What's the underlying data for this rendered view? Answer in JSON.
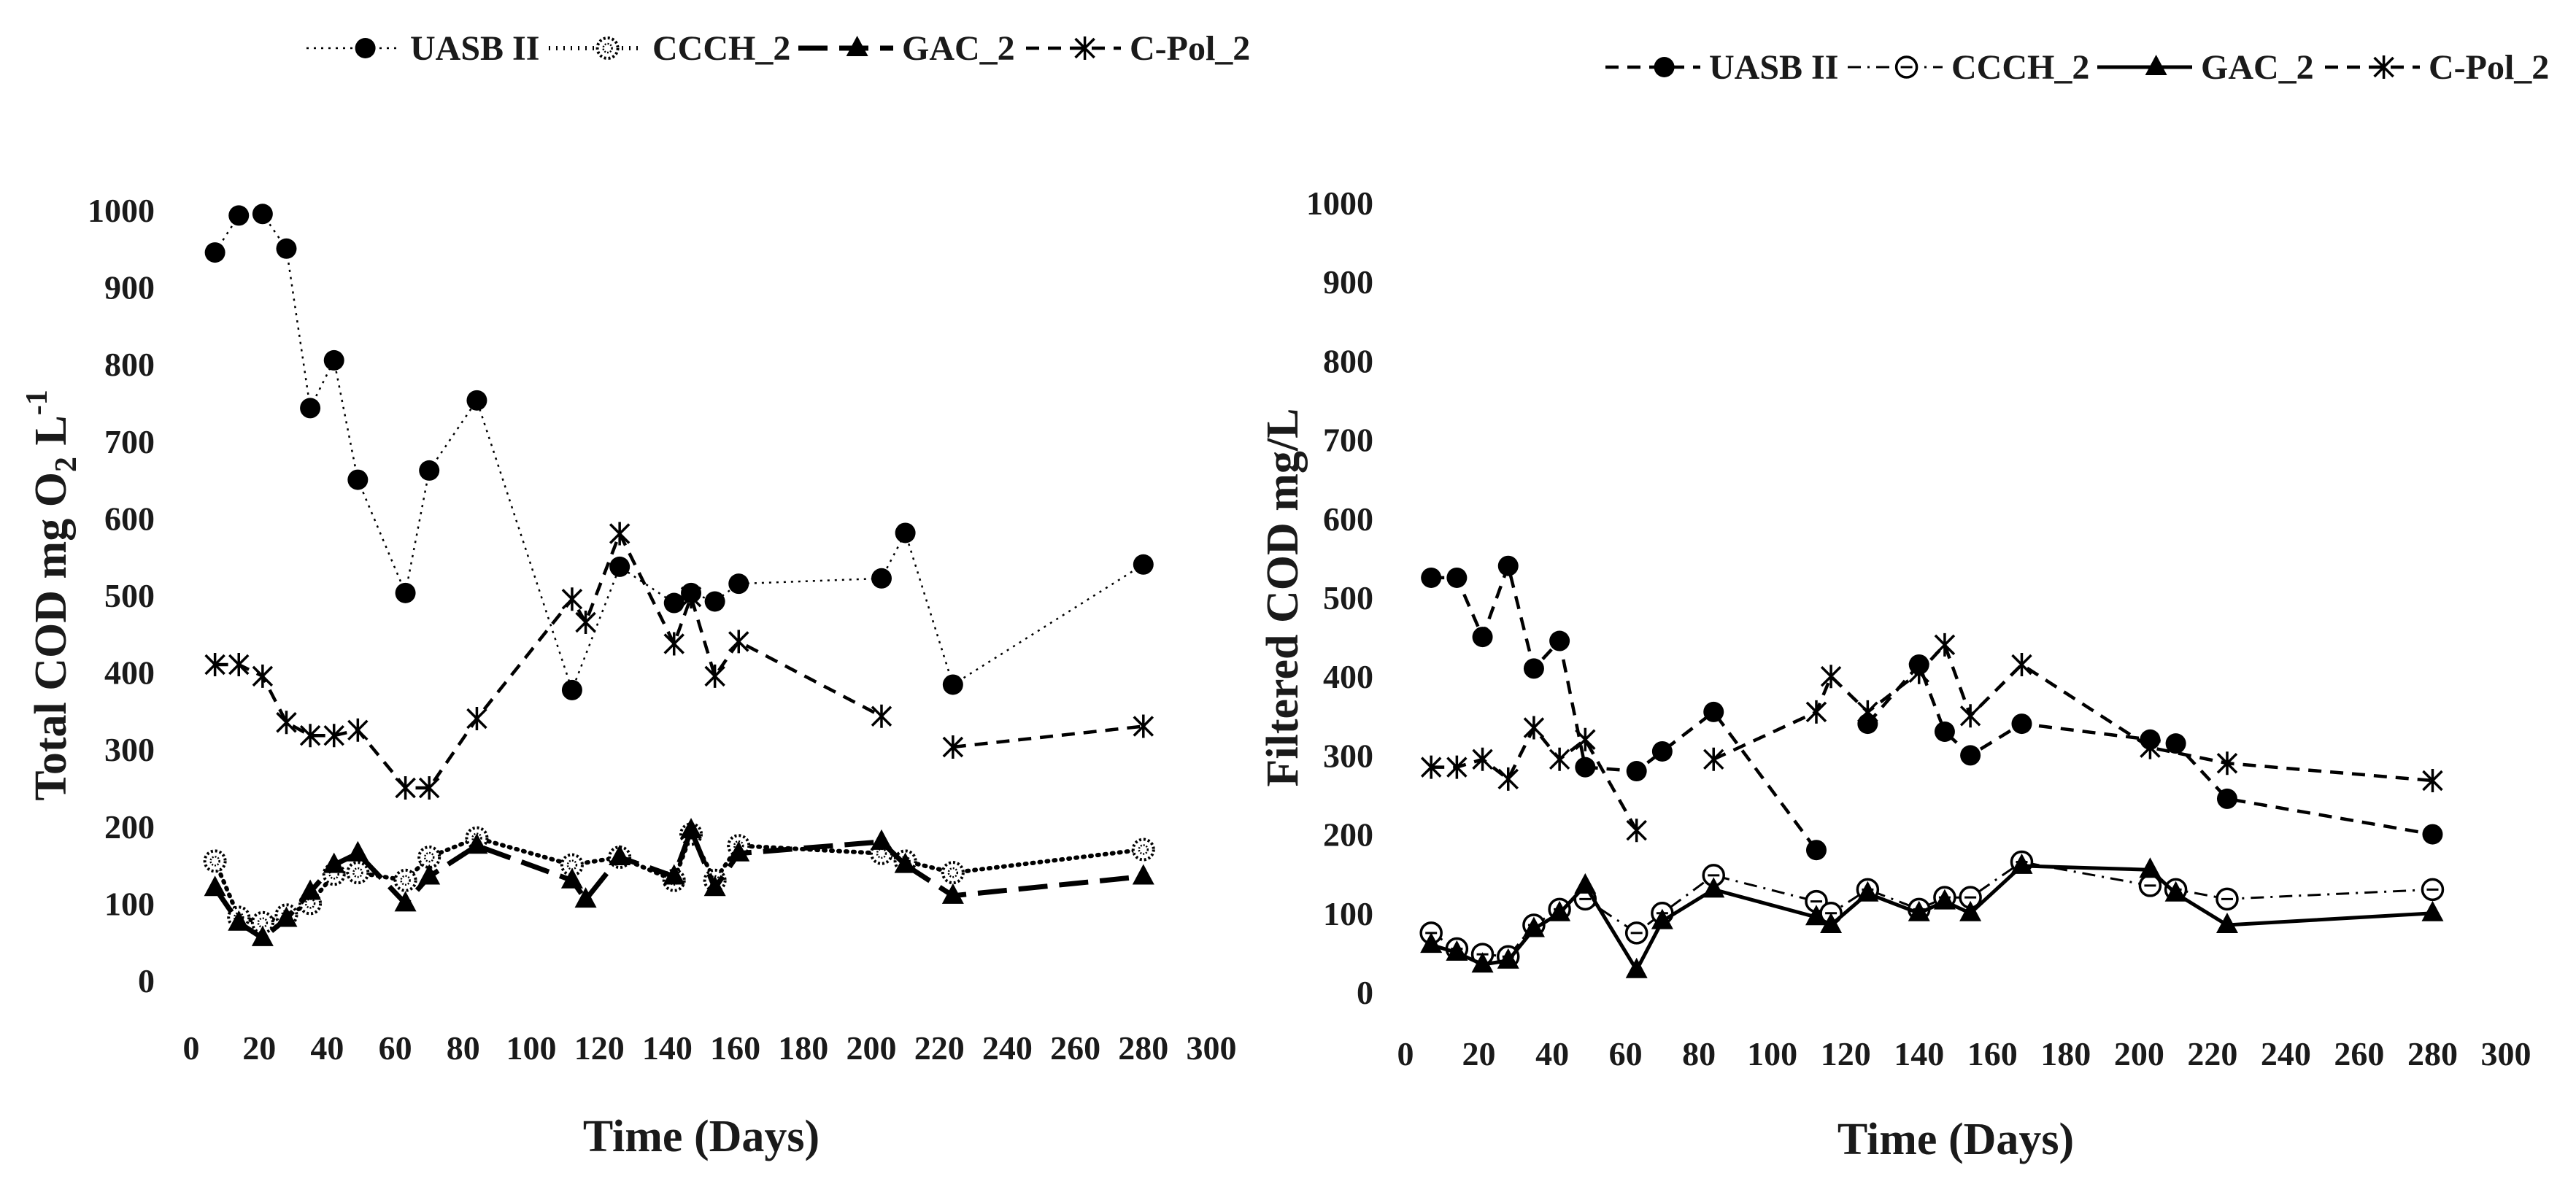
{
  "chart_data": [
    {
      "type": "line",
      "title": "",
      "xlabel": "Time (Days)",
      "ylabel_parts": {
        "main": "Total COD mg O",
        "sub": "2",
        "tail": " L",
        "sup": "-1"
      },
      "xlim": [
        0,
        300
      ],
      "ylim": [
        0,
        1000
      ],
      "xticks": [
        0,
        20,
        40,
        60,
        80,
        100,
        120,
        140,
        160,
        180,
        200,
        220,
        240,
        260,
        280,
        300
      ],
      "yticks": [
        0,
        100,
        200,
        300,
        400,
        500,
        600,
        700,
        800,
        900,
        1000
      ],
      "grid": false,
      "legend_position": "top",
      "series": [
        {
          "name": "UASB II",
          "marker": "circle-filled",
          "line": "dotted-thin",
          "color": "#000000",
          "segments": [
            [
              [
                7,
                945
              ],
              [
                14,
                993
              ],
              [
                21,
                995
              ],
              [
                28,
                950
              ],
              [
                35,
                743
              ],
              [
                42,
                805
              ],
              [
                49,
                650
              ],
              [
                63,
                503
              ],
              [
                70,
                662
              ],
              [
                84,
                753
              ],
              [
                112,
                377
              ],
              [
                126,
                537
              ],
              [
                142,
                490
              ],
              [
                147,
                503
              ],
              [
                154,
                492
              ],
              [
                161,
                515
              ],
              [
                203,
                522
              ],
              [
                210,
                581
              ],
              [
                224,
                384
              ],
              [
                280,
                540
              ]
            ]
          ]
        },
        {
          "name": "CCCH_2",
          "marker": "circle-dotted",
          "line": "dotted-thick",
          "color": "#000000",
          "segments": [
            [
              [
                7,
                155
              ],
              [
                14,
                82
              ],
              [
                21,
                75
              ],
              [
                28,
                85
              ],
              [
                35,
                100
              ],
              [
                42,
                138
              ],
              [
                49,
                140
              ],
              [
                63,
                130
              ],
              [
                70,
                160
              ],
              [
                84,
                185
              ],
              [
                112,
                150
              ],
              [
                126,
                160
              ],
              [
                142,
                130
              ],
              [
                147,
                190
              ],
              [
                154,
                130
              ],
              [
                161,
                175
              ],
              [
                203,
                165
              ],
              [
                210,
                155
              ],
              [
                224,
                140
              ],
              [
                280,
                170
              ]
            ]
          ]
        },
        {
          "name": "GAC_2",
          "marker": "triangle-filled",
          "line": "dashed-thick",
          "color": "#000000",
          "segments": [
            [
              [
                7,
                120
              ],
              [
                14,
                75
              ],
              [
                21,
                55
              ],
              [
                28,
                80
              ],
              [
                35,
                115
              ],
              [
                42,
                150
              ],
              [
                49,
                165
              ],
              [
                63,
                100
              ],
              [
                70,
                135
              ],
              [
                84,
                175
              ],
              [
                112,
                130
              ],
              [
                116,
                105
              ],
              [
                126,
                160
              ],
              [
                142,
                135
              ],
              [
                147,
                195
              ],
              [
                154,
                120
              ],
              [
                161,
                165
              ],
              [
                203,
                180
              ],
              [
                210,
                150
              ]
            ],
            [
              [
                210,
                150
              ],
              [
                224,
                110
              ],
              [
                280,
                135
              ]
            ]
          ]
        },
        {
          "name": "C-Pol_2",
          "marker": "asterisk",
          "line": "dashed",
          "color": "#000000",
          "segments": [
            [
              [
                7,
                410
              ],
              [
                14,
                410
              ],
              [
                21,
                395
              ],
              [
                28,
                335
              ],
              [
                35,
                318
              ],
              [
                42,
                318
              ],
              [
                49,
                325
              ],
              [
                63,
                250
              ],
              [
                70,
                250
              ],
              [
                84,
                340
              ],
              [
                112,
                495
              ],
              [
                116,
                465
              ],
              [
                126,
                580
              ],
              [
                142,
                437
              ],
              [
                147,
                498
              ],
              [
                154,
                395
              ],
              [
                161,
                440
              ],
              [
                203,
                343
              ]
            ],
            [
              [
                224,
                303
              ],
              [
                280,
                330
              ]
            ]
          ]
        }
      ]
    },
    {
      "type": "line",
      "title": "",
      "xlabel": "Time (Days)",
      "ylabel_parts": {
        "main": "Filtered COD mg/L",
        "sub": "",
        "tail": "",
        "sup": ""
      },
      "xlim": [
        0,
        300
      ],
      "ylim": [
        0,
        1000
      ],
      "xticks": [
        0,
        20,
        40,
        60,
        80,
        100,
        120,
        140,
        160,
        180,
        200,
        220,
        240,
        260,
        280,
        300
      ],
      "yticks": [
        0,
        100,
        200,
        300,
        400,
        500,
        600,
        700,
        800,
        900,
        1000
      ],
      "grid": false,
      "legend_position": "top-right",
      "series": [
        {
          "name": "UASB II",
          "marker": "circle-filled",
          "line": "dashed",
          "color": "#000000",
          "segments": [
            [
              [
                7,
                525
              ],
              [
                14,
                525
              ],
              [
                21,
                450
              ],
              [
                28,
                540
              ],
              [
                35,
                410
              ],
              [
                42,
                445
              ],
              [
                49,
                285
              ],
              [
                63,
                280
              ],
              [
                70,
                305
              ],
              [
                84,
                355
              ],
              [
                112,
                180
              ]
            ],
            [
              [
                126,
                340
              ],
              [
                140,
                415
              ],
              [
                147,
                330
              ],
              [
                154,
                300
              ],
              [
                168,
                340
              ],
              [
                203,
                320
              ],
              [
                210,
                315
              ],
              [
                224,
                245
              ],
              [
                280,
                200
              ]
            ]
          ]
        },
        {
          "name": "CCCH_2",
          "marker": "circle-open",
          "line": "dashdot",
          "color": "#000000",
          "segments": [
            [
              [
                7,
                75
              ],
              [
                14,
                55
              ],
              [
                21,
                48
              ],
              [
                28,
                45
              ],
              [
                35,
                85
              ],
              [
                42,
                105
              ],
              [
                49,
                118
              ],
              [
                63,
                75
              ],
              [
                70,
                100
              ],
              [
                84,
                148
              ],
              [
                112,
                115
              ],
              [
                116,
                100
              ],
              [
                126,
                130
              ],
              [
                140,
                105
              ],
              [
                147,
                120
              ],
              [
                154,
                120
              ],
              [
                168,
                165
              ],
              [
                203,
                135
              ],
              [
                210,
                130
              ],
              [
                224,
                118
              ],
              [
                280,
                130
              ]
            ]
          ]
        },
        {
          "name": "GAC_2",
          "marker": "triangle-filled",
          "line": "solid",
          "color": "#000000",
          "segments": [
            [
              [
                7,
                60
              ],
              [
                14,
                50
              ],
              [
                21,
                35
              ],
              [
                28,
                40
              ],
              [
                35,
                80
              ],
              [
                42,
                100
              ],
              [
                49,
                135
              ],
              [
                63,
                28
              ],
              [
                70,
                90
              ],
              [
                84,
                130
              ],
              [
                112,
                95
              ],
              [
                116,
                85
              ],
              [
                126,
                125
              ],
              [
                140,
                100
              ],
              [
                147,
                115
              ],
              [
                154,
                100
              ],
              [
                168,
                160
              ],
              [
                203,
                155
              ],
              [
                210,
                125
              ],
              [
                224,
                85
              ],
              [
                280,
                100
              ]
            ]
          ]
        },
        {
          "name": "C-Pol_2",
          "marker": "asterisk",
          "line": "dashed",
          "color": "#000000",
          "segments": [
            [
              [
                7,
                285
              ],
              [
                14,
                285
              ],
              [
                21,
                295
              ],
              [
                28,
                270
              ],
              [
                35,
                335
              ],
              [
                42,
                295
              ],
              [
                49,
                320
              ],
              [
                63,
                205
              ]
            ],
            [
              [
                84,
                295
              ],
              [
                112,
                355
              ],
              [
                116,
                400
              ],
              [
                126,
                355
              ],
              [
                140,
                405
              ],
              [
                147,
                440
              ],
              [
                154,
                350
              ],
              [
                168,
                415
              ],
              [
                203,
                310
              ],
              [
                224,
                290
              ],
              [
                280,
                268
              ]
            ]
          ]
        }
      ]
    }
  ]
}
